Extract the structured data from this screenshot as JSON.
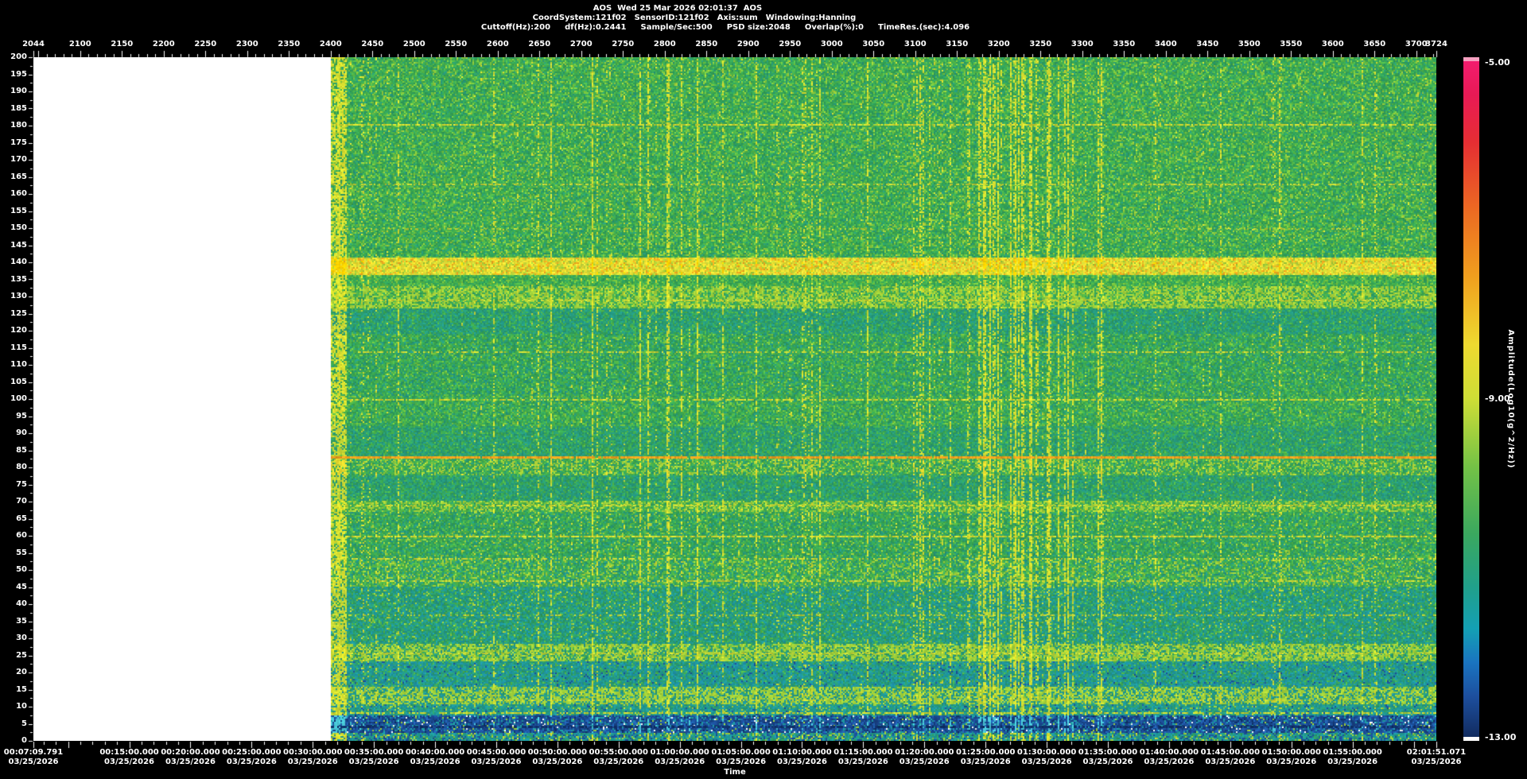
{
  "window": {
    "background": "#000000",
    "text_color": "#ffffff"
  },
  "header": {
    "title": "AOS  Wed 25 Mar 2026 02:01:37  AOS",
    "params_line1": [
      "CoordSystem:121f02",
      "SensorID:121f02",
      "Axis:sum",
      "Windowing:Hanning"
    ],
    "params_line2": [
      "Cuttoff(Hz):200",
      "df(Hz):0.2441",
      "Sample/Sec:500",
      "PSD size:2048",
      "Overlap(%):0",
      "TimeRes.(sec):4.096"
    ]
  },
  "chart_data": {
    "type": "heatmap",
    "subtype": "spectrogram",
    "x_axis_top": {
      "range": [
        2044,
        3724
      ],
      "ticks": [
        2044,
        2100,
        2150,
        2200,
        2250,
        2300,
        2350,
        2400,
        2450,
        2500,
        2550,
        2600,
        2650,
        2700,
        2750,
        2800,
        2850,
        2900,
        2950,
        3000,
        3050,
        3100,
        3150,
        3200,
        3250,
        3300,
        3350,
        3400,
        3450,
        3500,
        3550,
        3600,
        3650,
        3700,
        3724
      ],
      "minor_tick_step": 10
    },
    "y_axis": {
      "range": [
        0,
        200
      ],
      "ticks": [
        200,
        195,
        190,
        185,
        180,
        175,
        170,
        165,
        160,
        155,
        150,
        145,
        140,
        135,
        130,
        125,
        120,
        115,
        110,
        105,
        100,
        95,
        90,
        85,
        80,
        75,
        70,
        65,
        60,
        55,
        50,
        45,
        40,
        35,
        30,
        25,
        20,
        15,
        10,
        5,
        0
      ],
      "minor_tick_step": 2.5
    },
    "x_axis_bottom": {
      "label": "Time",
      "start": "00:07:09.791",
      "end": "02:01:51.071",
      "minor_tick_seconds": 60,
      "major_tick_seconds": 300,
      "labels": [
        {
          "time": "00:07:09.791",
          "date": "03/25/2026"
        },
        {
          "time": "00:15:00.000",
          "date": "03/25/2026"
        },
        {
          "time": "00:20:00.000",
          "date": "03/25/2026"
        },
        {
          "time": "00:25:00.000",
          "date": "03/25/2026"
        },
        {
          "time": "00:30:00.000",
          "date": "03/25/2026"
        },
        {
          "time": "00:35:00.000",
          "date": "03/25/2026"
        },
        {
          "time": "00:40:00.000",
          "date": "03/25/2026"
        },
        {
          "time": "00:45:00.000",
          "date": "03/25/2026"
        },
        {
          "time": "00:50:00.000",
          "date": "03/25/2026"
        },
        {
          "time": "00:55:00.000",
          "date": "03/25/2026"
        },
        {
          "time": "01:00:00.000",
          "date": "03/25/2026"
        },
        {
          "time": "01:05:00.000",
          "date": "03/25/2026"
        },
        {
          "time": "01:10:00.000",
          "date": "03/25/2026"
        },
        {
          "time": "01:15:00.000",
          "date": "03/25/2026"
        },
        {
          "time": "01:20:00.000",
          "date": "03/25/2026"
        },
        {
          "time": "01:25:00.000",
          "date": "03/25/2026"
        },
        {
          "time": "01:30:00.000",
          "date": "03/25/2026"
        },
        {
          "time": "01:35:00.000",
          "date": "03/25/2026"
        },
        {
          "time": "01:40:00.000",
          "date": "03/25/2026"
        },
        {
          "time": "01:45:00.000",
          "date": "03/25/2026"
        },
        {
          "time": "01:50:00.000",
          "date": "03/25/2026"
        },
        {
          "time": "01:55:00.000",
          "date": "03/25/2026"
        },
        {
          "time": "02:01:51.071",
          "date": "03/25/2026"
        }
      ]
    },
    "colorbar": {
      "label": "Amplitude(Log10(g^2/Hz))",
      "ticks": [
        "-5.00",
        "-9.00",
        "-13.00"
      ],
      "range": [
        -13.0,
        -5.0
      ],
      "top_cap": "#f6a0c0",
      "bottom_cap": "#ffffff",
      "gradient": [
        {
          "pos": 0.0,
          "color": "#f21c6e"
        },
        {
          "pos": 0.05,
          "color": "#e81a55"
        },
        {
          "pos": 0.12,
          "color": "#e62e33"
        },
        {
          "pos": 0.22,
          "color": "#ec6a22"
        },
        {
          "pos": 0.32,
          "color": "#f0a01e"
        },
        {
          "pos": 0.42,
          "color": "#eeda30"
        },
        {
          "pos": 0.5,
          "color": "#cede36"
        },
        {
          "pos": 0.6,
          "color": "#74c246"
        },
        {
          "pos": 0.7,
          "color": "#3aa85f"
        },
        {
          "pos": 0.78,
          "color": "#20a08c"
        },
        {
          "pos": 0.84,
          "color": "#14a0b4"
        },
        {
          "pos": 0.89,
          "color": "#1a74c0"
        },
        {
          "pos": 0.94,
          "color": "#1d4f9e"
        },
        {
          "pos": 1.0,
          "color": "#122c60"
        }
      ]
    },
    "no_data": {
      "records": [
        2044,
        2400
      ],
      "color": "#ffffff"
    },
    "texture": {
      "seed": 42,
      "bands": [
        {
          "f": [
            0,
            2.6
          ],
          "palette": [
            [
              "#1e9aa0",
              32
            ],
            [
              "#23988a",
              22
            ],
            [
              "#1b4f9a",
              20
            ],
            [
              "#2f9f5c",
              14
            ],
            [
              "#9ecf3a",
              12
            ]
          ],
          "hot": "#d8e030"
        },
        {
          "f": [
            2.6,
            7.6
          ],
          "palette": [
            [
              "#1c4f9a",
              30
            ],
            [
              "#173f80",
              26
            ],
            [
              "#2263b4",
              18
            ],
            [
              "#1e9aa0",
              14
            ],
            [
              "#0e2f66",
              6
            ],
            [
              "#9ecf3a",
              4
            ],
            [
              "#ffffff",
              2
            ]
          ],
          "hot": "#49c8d8"
        },
        {
          "f": [
            7.6,
            10.6
          ],
          "palette": [
            [
              "#23988a",
              34
            ],
            [
              "#1e9aa0",
              30
            ],
            [
              "#2d9f6a",
              22
            ],
            [
              "#9ecf3a",
              8
            ],
            [
              "#1c4f9a",
              6
            ]
          ],
          "hot": "#c8d834"
        },
        {
          "f": [
            10.6,
            16
          ],
          "wavy": true,
          "palette": [
            [
              "#9ecf3a",
              26
            ],
            [
              "#b4d738",
              18
            ],
            [
              "#23988a",
              26
            ],
            [
              "#1e9aa0",
              18
            ],
            [
              "#2d9f6a",
              12
            ]
          ],
          "hot": "#d8e030"
        },
        {
          "f": [
            16,
            23.5
          ],
          "palette": [
            [
              "#23988a",
              30
            ],
            [
              "#1e9aa0",
              22
            ],
            [
              "#2d9f6a",
              22
            ],
            [
              "#1f8fa8",
              14
            ],
            [
              "#52b748",
              8
            ],
            [
              "#1c4f9a",
              4
            ]
          ],
          "hot": "#c8d834"
        },
        {
          "f": [
            23.5,
            28.5
          ],
          "wavy": true,
          "palette": [
            [
              "#9ecf3a",
              26
            ],
            [
              "#b4d738",
              18
            ],
            [
              "#2d9f6a",
              22
            ],
            [
              "#23988a",
              20
            ],
            [
              "#52b748",
              14
            ]
          ],
          "hot": "#e0e42c"
        },
        {
          "f": [
            28.5,
            45
          ],
          "palette": [
            [
              "#23988a",
              28
            ],
            [
              "#2d9f6a",
              24
            ],
            [
              "#1e9aa0",
              18
            ],
            [
              "#2f9f5c",
              16
            ],
            [
              "#52b748",
              10
            ],
            [
              "#9ecf3a",
              4
            ]
          ],
          "hot": "#c8d834"
        },
        {
          "f": [
            45,
            53
          ],
          "palette": [
            [
              "#52b748",
              24
            ],
            [
              "#9ecf3a",
              20
            ],
            [
              "#3aa953",
              22
            ],
            [
              "#2d9f6a",
              18
            ],
            [
              "#23988a",
              16
            ]
          ],
          "hot": "#d8e030"
        },
        {
          "f": [
            53,
            67
          ],
          "palette": [
            [
              "#2f9f5c",
              26
            ],
            [
              "#3aa953",
              26
            ],
            [
              "#52b748",
              18
            ],
            [
              "#27997a",
              18
            ],
            [
              "#9ecf3a",
              8
            ],
            [
              "#23988a",
              4
            ]
          ],
          "hot": "#d8e030"
        },
        {
          "f": [
            67,
            70.5
          ],
          "palette": [
            [
              "#9ecf3a",
              24
            ],
            [
              "#b4d738",
              14
            ],
            [
              "#52b748",
              26
            ],
            [
              "#3aa953",
              22
            ],
            [
              "#2d9f6a",
              14
            ]
          ],
          "hot": "#e0e42c"
        },
        {
          "f": [
            70.5,
            78
          ],
          "palette": [
            [
              "#27997a",
              30
            ],
            [
              "#2d9f6a",
              26
            ],
            [
              "#3aa953",
              24
            ],
            [
              "#23988a",
              12
            ],
            [
              "#52b748",
              8
            ]
          ],
          "hot": "#c8d834"
        },
        {
          "f": [
            78,
            83.4
          ],
          "palette": [
            [
              "#3aa953",
              24
            ],
            [
              "#52b748",
              22
            ],
            [
              "#9ecf3a",
              18
            ],
            [
              "#2d9f6a",
              20
            ],
            [
              "#b4d738",
              8
            ],
            [
              "#27997a",
              8
            ]
          ],
          "hot": "#e8dc2e"
        },
        {
          "f": [
            83.4,
            92
          ],
          "palette": [
            [
              "#27997a",
              28
            ],
            [
              "#2d9f6a",
              26
            ],
            [
              "#3aa953",
              24
            ],
            [
              "#23988a",
              10
            ],
            [
              "#52b748",
              12
            ]
          ],
          "hot": "#c8d834"
        },
        {
          "f": [
            92,
            101
          ],
          "palette": [
            [
              "#2f9f5c",
              24
            ],
            [
              "#3aa953",
              26
            ],
            [
              "#52b748",
              22
            ],
            [
              "#7cc83e",
              12
            ],
            [
              "#27997a",
              16
            ]
          ],
          "hot": "#d8e030"
        },
        {
          "f": [
            101,
            119
          ],
          "palette": [
            [
              "#2f9f5c",
              26
            ],
            [
              "#3aa953",
              26
            ],
            [
              "#52b748",
              18
            ],
            [
              "#27997a",
              16
            ],
            [
              "#7cc83e",
              8
            ],
            [
              "#23988a",
              6
            ]
          ],
          "hot": "#d8e030"
        },
        {
          "f": [
            119,
            126.5
          ],
          "palette": [
            [
              "#27997a",
              28
            ],
            [
              "#239b8a",
              22
            ],
            [
              "#2d9f6a",
              22
            ],
            [
              "#3aa953",
              18
            ],
            [
              "#52b748",
              10
            ]
          ],
          "hot": "#c8d834"
        },
        {
          "f": [
            126.5,
            133
          ],
          "wavy": true,
          "palette": [
            [
              "#9ecf3a",
              22
            ],
            [
              "#b4d738",
              16
            ],
            [
              "#52b748",
              22
            ],
            [
              "#3aa953",
              22
            ],
            [
              "#2d9f6a",
              18
            ]
          ],
          "hot": "#e0e42c"
        },
        {
          "f": [
            133,
            136.5
          ],
          "palette": [
            [
              "#52b748",
              26
            ],
            [
              "#3aa953",
              28
            ],
            [
              "#7cc83e",
              18
            ],
            [
              "#2f9f5c",
              28
            ]
          ],
          "hot": "#d8e030"
        },
        {
          "f": [
            136.5,
            141.5
          ],
          "palette": [
            [
              "#e8dc2e",
              34
            ],
            [
              "#f0e43a",
              22
            ],
            [
              "#c8d838",
              18
            ],
            [
              "#f0a81e",
              14
            ],
            [
              "#9ecf3a",
              12
            ]
          ],
          "hot": "#ffd400"
        },
        {
          "f": [
            141.5,
            200.01
          ],
          "palette": [
            [
              "#2f9f5c",
              26
            ],
            [
              "#3aa953",
              26
            ],
            [
              "#52b748",
              20
            ],
            [
              "#7cc83e",
              12
            ],
            [
              "#27997a",
              10
            ],
            [
              "#9ecf3a",
              6
            ]
          ],
          "hot": "#d8e030"
        }
      ],
      "lines": [
        {
          "f": 180.5,
          "color": "#d0d830",
          "strength": 0.7,
          "width": 2
        },
        {
          "f": 163,
          "color": "#c0d034",
          "strength": 0.4,
          "width": 2
        },
        {
          "f": 150,
          "color": "#b8cc34",
          "strength": 0.3,
          "width": 2
        },
        {
          "f": 129,
          "color": "#c8d434",
          "strength": 0.5,
          "width": 2
        },
        {
          "f": 114,
          "color": "#c8d434",
          "strength": 0.5,
          "width": 2
        },
        {
          "f": 100,
          "color": "#d0d830",
          "strength": 0.65,
          "width": 2
        },
        {
          "f": 83.3,
          "color": "#f0a01e",
          "strength": 0.95,
          "width": 3,
          "drip": true
        },
        {
          "f": 69,
          "color": "#c8d434",
          "strength": 0.5,
          "width": 2
        },
        {
          "f": 60,
          "color": "#d0d830",
          "strength": 0.7,
          "width": 2
        },
        {
          "f": 53.5,
          "color": "#c8d434",
          "strength": 0.45,
          "width": 2
        },
        {
          "f": 47,
          "color": "#c8d434",
          "strength": 0.5,
          "width": 2
        },
        {
          "f": 37,
          "color": "#b8cc34",
          "strength": 0.35,
          "width": 2
        },
        {
          "f": 25.8,
          "color": "#c8d434",
          "strength": 0.45,
          "width": 2
        },
        {
          "f": 12.2,
          "color": "#c8d434",
          "strength": 0.4,
          "width": 2
        },
        {
          "f": 8.4,
          "color": "#d0d830",
          "strength": 0.6,
          "width": 2
        },
        {
          "f": 4.5,
          "color": "#0e2f66",
          "strength": 0.5,
          "width": 3
        }
      ],
      "streaks": {
        "base_prob": 0.05,
        "faint_prob": 0.15,
        "dense_regions": [
          {
            "records": [
              2400,
              2418
            ],
            "prob": 0.95,
            "boost": [
              0.5,
              0.95
            ]
          },
          {
            "records": [
              3090,
              3290
            ],
            "prob": 0.3,
            "boost": [
              0.3,
              0.8
            ]
          }
        ]
      }
    }
  }
}
